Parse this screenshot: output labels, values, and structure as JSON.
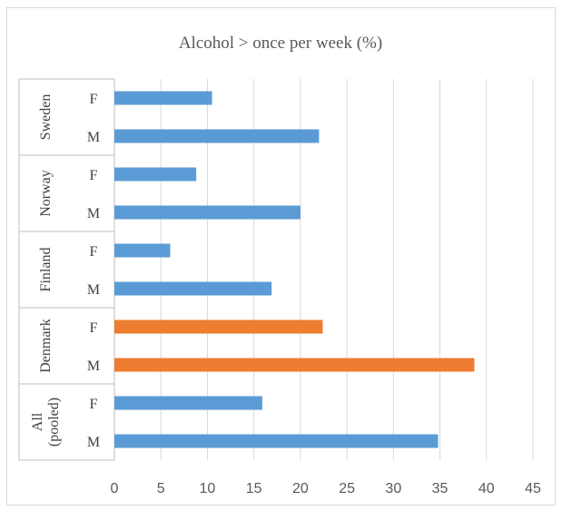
{
  "chart_data": {
    "type": "bar",
    "orientation": "horizontal",
    "title": "Alcohol > once per week (%)",
    "xlim": [
      0,
      45
    ],
    "x_ticks": [
      "0",
      "5",
      "10",
      "15",
      "20",
      "25",
      "30",
      "35",
      "40",
      "45"
    ],
    "grid": "vertical",
    "legend": "none",
    "groups": [
      {
        "country": "Sweden",
        "bars": [
          {
            "sex": "F",
            "value": 10.5,
            "highlight": false
          },
          {
            "sex": "M",
            "value": 22.0,
            "highlight": false
          }
        ]
      },
      {
        "country": "Norway",
        "bars": [
          {
            "sex": "F",
            "value": 8.8,
            "highlight": false
          },
          {
            "sex": "M",
            "value": 20.0,
            "highlight": false
          }
        ]
      },
      {
        "country": "Finland",
        "bars": [
          {
            "sex": "F",
            "value": 6.0,
            "highlight": false
          },
          {
            "sex": "M",
            "value": 16.9,
            "highlight": false
          }
        ]
      },
      {
        "country": "Denmark",
        "bars": [
          {
            "sex": "F",
            "value": 22.4,
            "highlight": true
          },
          {
            "sex": "M",
            "value": 38.7,
            "highlight": true
          }
        ]
      },
      {
        "country": "All (pooled)",
        "country_lines": [
          "All",
          "(pooled)"
        ],
        "bars": [
          {
            "sex": "F",
            "value": 15.9,
            "highlight": false
          },
          {
            "sex": "M",
            "value": 34.8,
            "highlight": false
          }
        ]
      }
    ],
    "colors": {
      "bar": "#5b9bd5",
      "highlight": "#ed7d31",
      "grid": "#d9d9d9",
      "axis": "#bfbfbf",
      "text": "#595959"
    }
  }
}
